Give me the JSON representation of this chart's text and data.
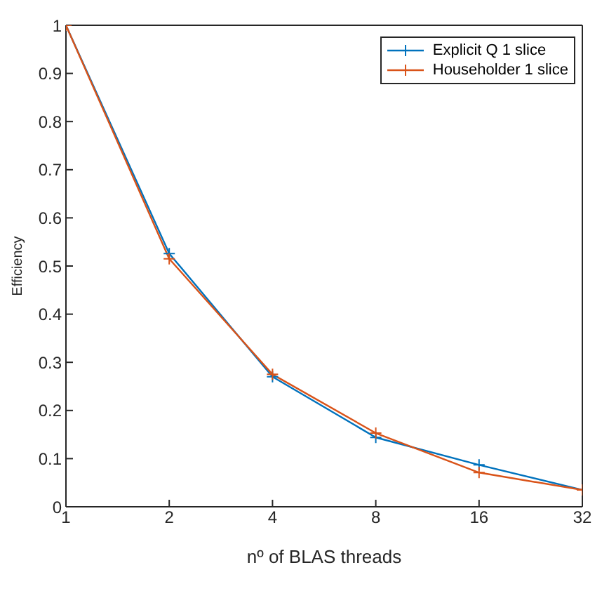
{
  "chart_data": {
    "type": "line",
    "xlabel": "nº of BLAS threads",
    "ylabel": "Efficiency",
    "x": [
      1,
      2,
      4,
      8,
      16,
      32
    ],
    "log": "x",
    "xlim": [
      1,
      32
    ],
    "xticks": [
      1,
      2,
      4,
      8,
      16,
      32
    ],
    "ylim": [
      0,
      1
    ],
    "yticks": [
      0,
      0.1,
      0.2,
      0.3,
      0.4,
      0.5,
      0.6,
      0.7,
      0.8,
      0.9,
      1
    ],
    "series": [
      {
        "name": "Explicit Q 1 slice",
        "color": "#0072bd",
        "values": [
          1,
          0.526,
          0.27,
          0.144,
          0.087,
          0.035
        ]
      },
      {
        "name": "Householder 1 slice",
        "color": "#d95319",
        "values": [
          1,
          0.515,
          0.275,
          0.153,
          0.071,
          0.035
        ]
      }
    ],
    "marker": "cross",
    "line_style": "solid",
    "grid": false,
    "legend": "top right"
  }
}
